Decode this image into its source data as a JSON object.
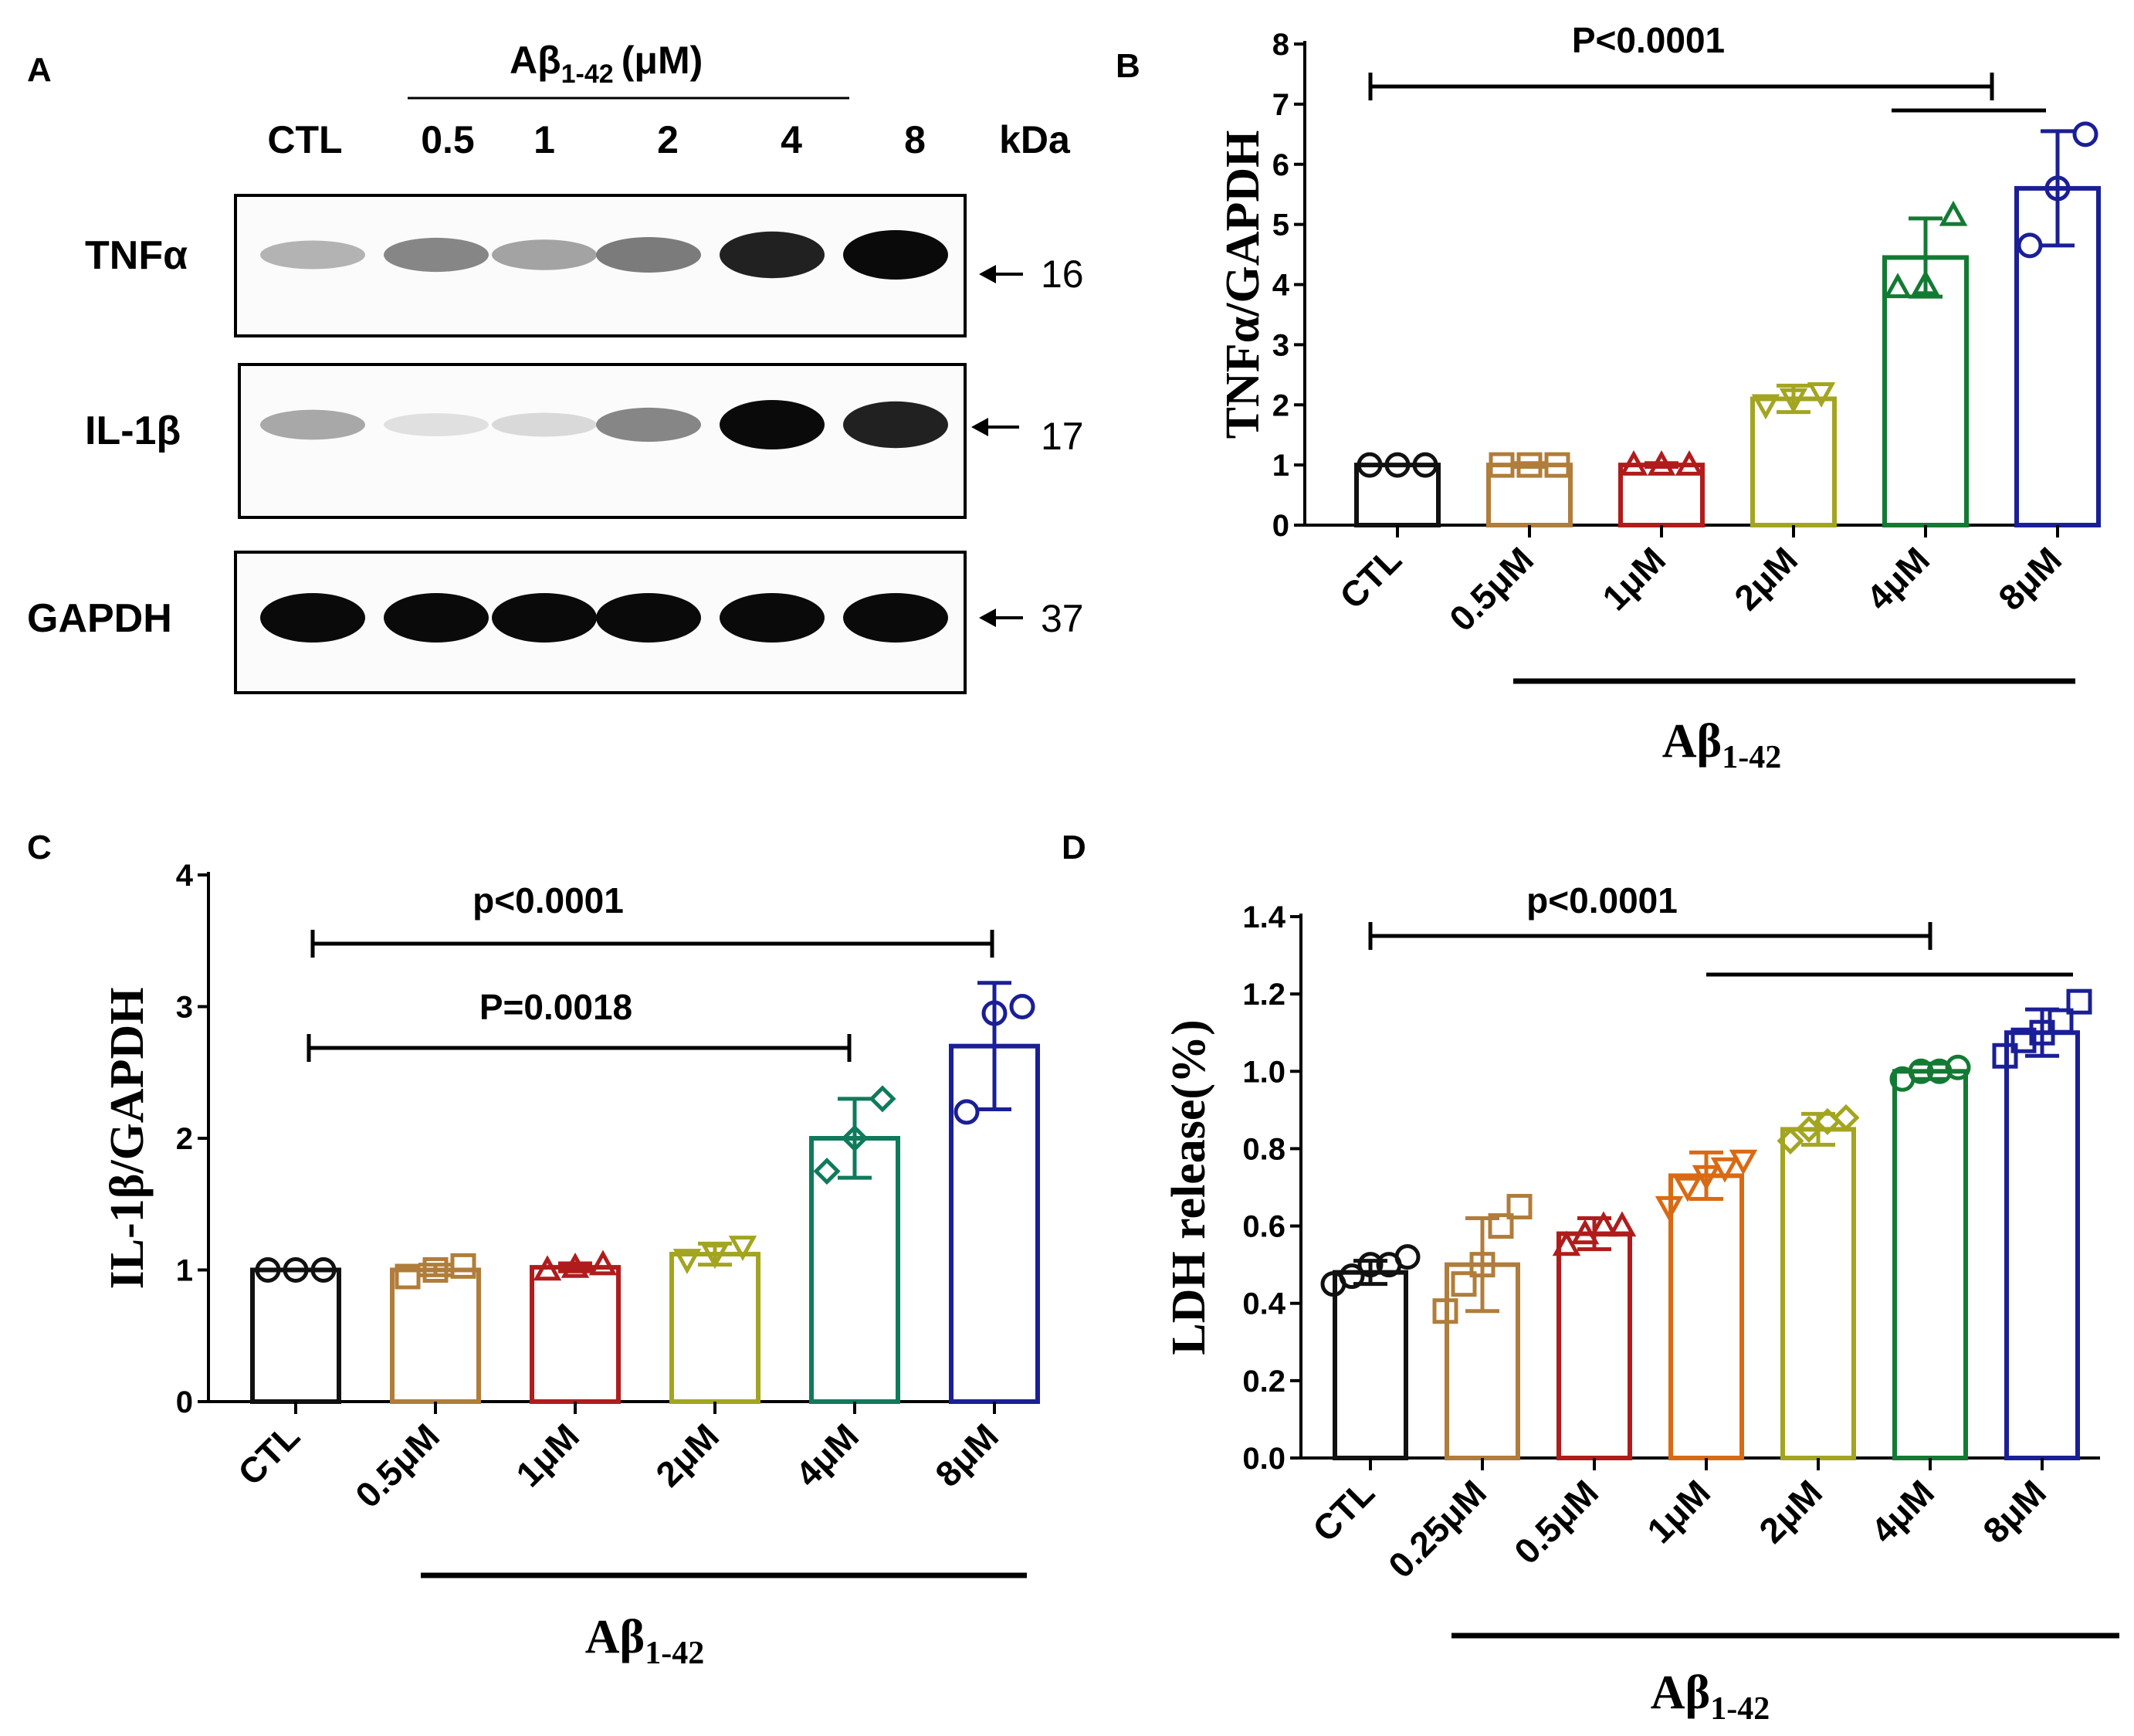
{
  "panel_a": {
    "letter": "A",
    "treatment_main": "Aβ",
    "treatment_sub": "1-42",
    "treatment_unit": "(μM)",
    "lanes": [
      "CTL",
      "0.5",
      "1",
      "2",
      "4",
      "8"
    ],
    "kda_label": "kDa",
    "blots": [
      {
        "label": "TNFα",
        "kda": "16",
        "intensities": [
          0.25,
          0.45,
          0.32,
          0.5,
          0.9,
          1.0
        ]
      },
      {
        "label": "IL-1β",
        "kda": "17",
        "intensities": [
          0.3,
          0.05,
          0.08,
          0.45,
          1.0,
          0.9
        ]
      },
      {
        "label": "GAPDH",
        "kda": "37",
        "intensities": [
          1.0,
          1.0,
          1.0,
          1.0,
          1.0,
          1.0
        ]
      }
    ]
  },
  "colors": {
    "CTL": "#111111",
    "c025": "#b07d3a",
    "c05": "#b07d3a",
    "c1": "#b01c1c",
    "c1_ldh": "#d96a14",
    "c2": "#a3a520",
    "c4": "#137a34",
    "c4_il1b": "#0f7a5c",
    "c8": "#1a1f96"
  },
  "chart_data": [
    {
      "type": "bar",
      "panel": "B",
      "ylabel": "TNFα/GAPDH",
      "ylim": [
        0,
        8
      ],
      "yticks": [
        "0",
        "1",
        "2",
        "3",
        "4",
        "5",
        "6",
        "7",
        "8"
      ],
      "categories": [
        "CTL",
        "0.5μM",
        "1μM",
        "2μM",
        "4μM",
        "8μM"
      ],
      "values": [
        1.0,
        1.0,
        1.0,
        2.1,
        4.45,
        5.6
      ],
      "errors": [
        0.0,
        0.03,
        0.03,
        0.22,
        0.65,
        0.95
      ],
      "points": [
        [
          1.0,
          1.0,
          1.0
        ],
        [
          1.0,
          1.0,
          1.0
        ],
        [
          1.0,
          1.0,
          1.0
        ],
        [
          2.0,
          2.1,
          2.2
        ],
        [
          3.95,
          4.0,
          5.15
        ],
        [
          4.65,
          5.6,
          6.5
        ]
      ],
      "markers": [
        "circle",
        "square",
        "triangle-up",
        "triangle-down",
        "triangle-up",
        "circle"
      ],
      "bracket_label": "P<0.0001",
      "group_label_main": "Aβ",
      "group_label_sub": "1-42"
    },
    {
      "type": "bar",
      "panel": "C",
      "ylabel": "IL-1β/GAPDH",
      "ylim": [
        0,
        4
      ],
      "yticks": [
        "0",
        "1",
        "2",
        "3",
        "4"
      ],
      "categories": [
        "CTL",
        "0.5μM",
        "1μM",
        "2μM",
        "4μM",
        "8μM"
      ],
      "values": [
        1.0,
        1.0,
        1.02,
        1.12,
        2.0,
        2.7
      ],
      "errors": [
        0.0,
        0.04,
        0.03,
        0.08,
        0.3,
        0.48
      ],
      "points": [
        [
          1.0,
          1.0,
          1.0
        ],
        [
          0.95,
          1.0,
          1.03
        ],
        [
          1.0,
          1.02,
          1.04
        ],
        [
          1.08,
          1.12,
          1.18
        ],
        [
          1.75,
          2.0,
          2.3
        ],
        [
          2.2,
          2.95,
          3.0
        ]
      ],
      "markers": [
        "circle",
        "square",
        "triangle-up",
        "triangle-down",
        "diamond",
        "circle"
      ],
      "bracket1_label": "p<0.0001",
      "bracket2_label": "P=0.0018",
      "group_label_main": "Aβ",
      "group_label_sub": "1-42"
    },
    {
      "type": "bar",
      "panel": "D",
      "ylabel": "LDH release(%)",
      "ylim": [
        0,
        1.4
      ],
      "yticks": [
        "0.0",
        "0.2",
        "0.4",
        "0.6",
        "0.8",
        "1.0",
        "1.2",
        "1.4"
      ],
      "categories": [
        "CTL",
        "0.25μM",
        "0.5μM",
        "1μM",
        "2μM",
        "4μM",
        "8μM"
      ],
      "values": [
        0.48,
        0.5,
        0.58,
        0.73,
        0.85,
        1.0,
        1.1
      ],
      "errors": [
        0.03,
        0.12,
        0.04,
        0.06,
        0.04,
        0.02,
        0.06
      ],
      "points": [
        [
          0.45,
          0.47,
          0.5,
          0.5,
          0.52
        ],
        [
          0.38,
          0.45,
          0.5,
          0.6,
          0.65
        ],
        [
          0.55,
          0.58,
          0.6,
          0.6
        ],
        [
          0.65,
          0.7,
          0.73,
          0.75,
          0.77
        ],
        [
          0.82,
          0.85,
          0.87,
          0.88
        ],
        [
          0.98,
          1.0,
          1.0,
          1.01
        ],
        [
          1.04,
          1.08,
          1.1,
          1.13,
          1.18
        ]
      ],
      "markers": [
        "circle",
        "square",
        "triangle-up",
        "triangle-down",
        "diamond",
        "circle",
        "square"
      ],
      "bracket_label": "p<0.0001",
      "group_label_main": "Aβ",
      "group_label_sub": "1-42"
    }
  ]
}
